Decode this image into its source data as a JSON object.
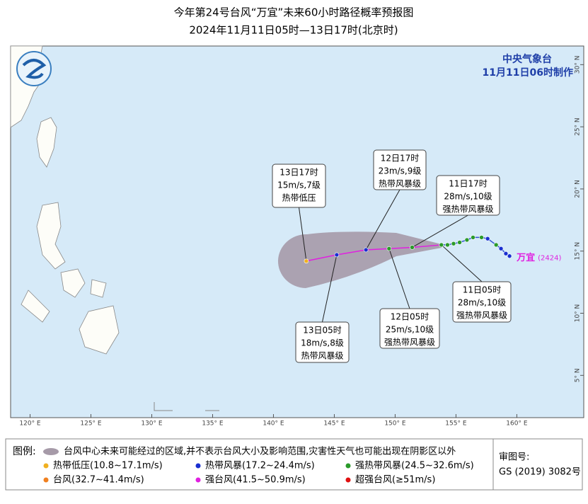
{
  "header": {
    "title": "今年第24号台风“万宜”未来60小时路径概率预报图",
    "subtitle": "2024年11月11日05时—13日17时(北京时)"
  },
  "agency": {
    "name": "中央气象台",
    "issued": "11月11日06时制作"
  },
  "map": {
    "lonlim": [
      118.4,
      165.5
    ],
    "latlim": [
      1.6,
      31.5
    ],
    "lon_ticks": [
      {
        "value": 120,
        "label": "120° E"
      },
      {
        "value": 125,
        "label": "125° E"
      },
      {
        "value": 130,
        "label": "130° E"
      },
      {
        "value": 135,
        "label": "135° E"
      },
      {
        "value": 140,
        "label": "140° E"
      },
      {
        "value": 145,
        "label": "145° E"
      },
      {
        "value": 150,
        "label": "150° E"
      },
      {
        "value": 155,
        "label": "155° E"
      },
      {
        "value": 160,
        "label": "160° E"
      }
    ],
    "lat_ticks": [
      {
        "value": 5,
        "label": "5° N"
      },
      {
        "value": 10,
        "label": "10° N"
      },
      {
        "value": 15,
        "label": "15° N"
      },
      {
        "value": 20,
        "label": "20° N"
      },
      {
        "value": 25,
        "label": "25° N"
      },
      {
        "value": 30,
        "label": "30° N"
      }
    ]
  },
  "typhoon": {
    "name": "万宜",
    "number": "(2424)",
    "track": [
      {
        "lon": 159.4,
        "lat": 14.6,
        "color": "#1a2fd0"
      },
      {
        "lon": 159.1,
        "lat": 14.8,
        "color": "#1a2fd0"
      },
      {
        "lon": 158.7,
        "lat": 15.2,
        "color": "#1a2fd0"
      },
      {
        "lon": 158.3,
        "lat": 15.5,
        "color": "#2a9a2a"
      },
      {
        "lon": 157.6,
        "lat": 16.0,
        "color": "#1a2fd0"
      },
      {
        "lon": 157.1,
        "lat": 16.1,
        "color": "#2a9a2a"
      },
      {
        "lon": 156.4,
        "lat": 16.1,
        "color": "#2a9a2a"
      },
      {
        "lon": 155.9,
        "lat": 15.9,
        "color": "#2a9a2a"
      },
      {
        "lon": 155.3,
        "lat": 15.7,
        "color": "#2a9a2a"
      },
      {
        "lon": 154.8,
        "lat": 15.6,
        "color": "#2a9a2a"
      },
      {
        "lon": 154.3,
        "lat": 15.5,
        "color": "#2a9a2a"
      },
      {
        "lon": 153.8,
        "lat": 15.5,
        "color": "#2a9a2a"
      }
    ],
    "forecast": [
      {
        "lon": 151.4,
        "lat": 15.3,
        "color": "#2a9a2a"
      },
      {
        "lon": 149.5,
        "lat": 15.2,
        "color": "#2a9a2a"
      },
      {
        "lon": 147.6,
        "lat": 15.1,
        "color": "#1a2fd0"
      },
      {
        "lon": 145.2,
        "lat": 14.7,
        "color": "#1a2fd0"
      },
      {
        "lon": 142.7,
        "lat": 14.2,
        "color": "#f0b020"
      }
    ]
  },
  "callouts": [
    {
      "lines": [
        "13日17时",
        "15m/s,7级",
        "热带低压"
      ]
    },
    {
      "lines": [
        "12日17时",
        "23m/s,9级",
        "热带风暴级"
      ]
    },
    {
      "lines": [
        "11日17时",
        "28m/s,10级",
        "强热带风暴级"
      ]
    },
    {
      "lines": [
        "11日05时",
        "28m/s,10级",
        "强热带风暴级"
      ]
    },
    {
      "lines": [
        "12日05时",
        "25m/s,10级",
        "强热带风暴级"
      ]
    },
    {
      "lines": [
        "13日05时",
        "18m/s,8级",
        "热带风暴级"
      ]
    }
  ],
  "legend": {
    "title": "图例:",
    "cone": "台风中心未来可能经过的区域,并不表示台风大小及影响范围,灾害性天气也可能出现在阴影区以外",
    "items": [
      {
        "label": "热带低压(10.8~17.1m/s)",
        "color": "#f0b020"
      },
      {
        "label": "热带风暴(17.2~24.4m/s)",
        "color": "#1a2fd0"
      },
      {
        "label": "强热带风暴(24.5~32.6m/s)",
        "color": "#2a9a2a"
      },
      {
        "label": "台风(32.7~41.4m/s)",
        "color": "#f08020"
      },
      {
        "label": "强台风(41.5~50.9m/s)",
        "color": "#e020e0"
      },
      {
        "label": "超强台风(≥51m/s)",
        "color": "#e01010"
      }
    ]
  },
  "approval": {
    "label": "审图号:",
    "number": "GS (2019) 3082号"
  }
}
